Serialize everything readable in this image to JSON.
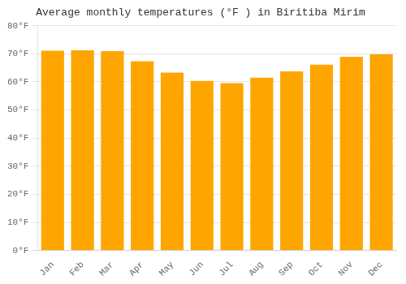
{
  "chart_data": {
    "type": "bar",
    "title": "Average monthly temperatures (°F ) in Biritiba Mirim",
    "categories": [
      "Jan",
      "Feb",
      "Mar",
      "Apr",
      "May",
      "Jun",
      "Jul",
      "Aug",
      "Sep",
      "Oct",
      "Nov",
      "Dec"
    ],
    "values": [
      71.1,
      71.2,
      70.9,
      67.3,
      63.3,
      60.3,
      59.5,
      61.5,
      63.7,
      66.1,
      68.9,
      69.8
    ],
    "color": "#FFA500",
    "ylim": [
      0,
      80
    ],
    "yticks": [
      {
        "value": 0,
        "label": "0°F"
      },
      {
        "value": 10,
        "label": "10°F"
      },
      {
        "value": 20,
        "label": "20°F"
      },
      {
        "value": 30,
        "label": "30°F"
      },
      {
        "value": 40,
        "label": "40°F"
      },
      {
        "value": 50,
        "label": "50°F"
      },
      {
        "value": 60,
        "label": "60°F"
      },
      {
        "value": 70,
        "label": "70°F"
      },
      {
        "value": 80,
        "label": "80°F"
      }
    ],
    "grid": true
  }
}
